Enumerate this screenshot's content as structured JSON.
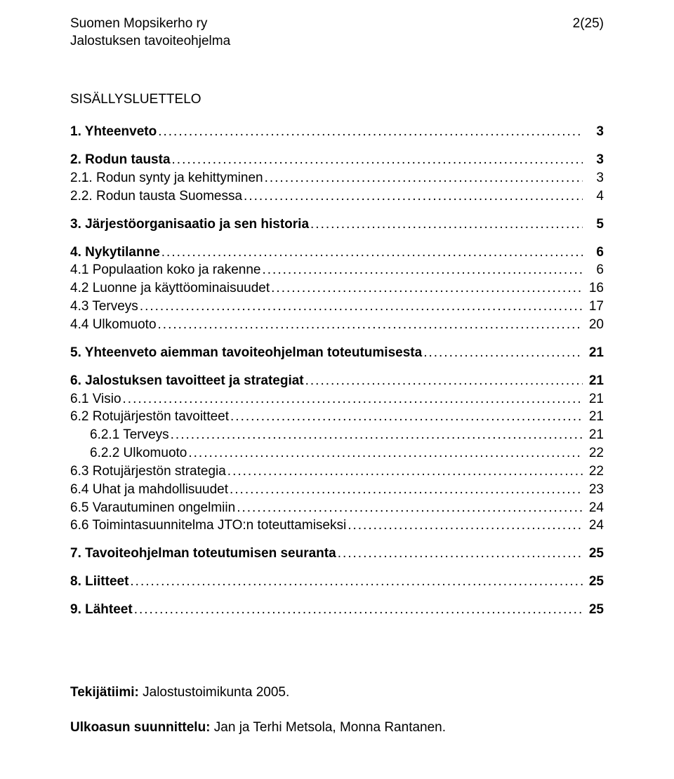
{
  "header": {
    "org": "Suomen Mopsikerho ry",
    "subtitle": "Jalostuksen tavoiteohjelma",
    "page_indicator": "2(25)"
  },
  "heading": "SISÄLLYSLUETTELO",
  "toc": [
    {
      "label": "1. Yhteenveto",
      "page": "3",
      "bold": true,
      "indent": 0,
      "gap_before": false
    },
    {
      "label": "2. Rodun tausta",
      "page": "3",
      "bold": true,
      "indent": 0,
      "gap_before": true
    },
    {
      "label": "2.1. Rodun synty ja kehittyminen",
      "page": "3",
      "bold": false,
      "indent": 0,
      "gap_before": false
    },
    {
      "label": "2.2. Rodun tausta Suomessa",
      "page": "4",
      "bold": false,
      "indent": 0,
      "gap_before": false
    },
    {
      "label": "3. Järjestöorganisaatio ja sen historia",
      "page": "5",
      "bold": true,
      "indent": 0,
      "gap_before": true
    },
    {
      "label": "4. Nykytilanne",
      "page": "6",
      "bold": true,
      "indent": 0,
      "gap_before": true
    },
    {
      "label": "4.1 Populaation koko ja rakenne",
      "page": "6",
      "bold": false,
      "indent": 0,
      "gap_before": false
    },
    {
      "label": "4.2 Luonne ja käyttöominaisuudet",
      "page": "16",
      "bold": false,
      "indent": 0,
      "gap_before": false
    },
    {
      "label": "4.3 Terveys",
      "page": "17",
      "bold": false,
      "indent": 0,
      "gap_before": false
    },
    {
      "label": "4.4 Ulkomuoto",
      "page": "20",
      "bold": false,
      "indent": 0,
      "gap_before": false
    },
    {
      "label": "5. Yhteenveto aiemman tavoiteohjelman toteutumisesta",
      "page": "21",
      "bold": true,
      "indent": 0,
      "gap_before": true
    },
    {
      "label": "6. Jalostuksen tavoitteet ja strategiat",
      "page": "21",
      "bold": true,
      "indent": 0,
      "gap_before": true
    },
    {
      "label": "6.1 Visio",
      "page": "21",
      "bold": false,
      "indent": 0,
      "gap_before": false
    },
    {
      "label": "6.2 Rotujärjestön tavoitteet",
      "page": "21",
      "bold": false,
      "indent": 0,
      "gap_before": false
    },
    {
      "label": "6.2.1 Terveys",
      "page": "21",
      "bold": false,
      "indent": 1,
      "gap_before": false
    },
    {
      "label": "6.2.2 Ulkomuoto",
      "page": "22",
      "bold": false,
      "indent": 1,
      "gap_before": false
    },
    {
      "label": "6.3 Rotujärjestön strategia",
      "page": "22",
      "bold": false,
      "indent": 0,
      "gap_before": false
    },
    {
      "label": "6.4 Uhat ja mahdollisuudet",
      "page": "23",
      "bold": false,
      "indent": 0,
      "gap_before": false
    },
    {
      "label": "6.5 Varautuminen ongelmiin",
      "page": "24",
      "bold": false,
      "indent": 0,
      "gap_before": false
    },
    {
      "label": "6.6 Toimintasuunnitelma JTO:n toteuttamiseksi",
      "page": "24",
      "bold": false,
      "indent": 0,
      "gap_before": false
    },
    {
      "label": "7. Tavoiteohjelman toteutumisen seuranta",
      "page": "25",
      "bold": true,
      "indent": 0,
      "gap_before": true
    },
    {
      "label": "8. Liitteet",
      "page": "25",
      "bold": true,
      "indent": 0,
      "gap_before": true
    },
    {
      "label": "9. Lähteet",
      "page": "25",
      "bold": true,
      "indent": 0,
      "gap_before": true
    }
  ],
  "credits": {
    "team_label": "Tekijätiimi:",
    "team_value": " Jalostustoimikunta 2005.",
    "design_label": "Ulkoasun suunnittelu:",
    "design_value": " Jan ja Terhi Metsola, Monna Rantanen."
  }
}
